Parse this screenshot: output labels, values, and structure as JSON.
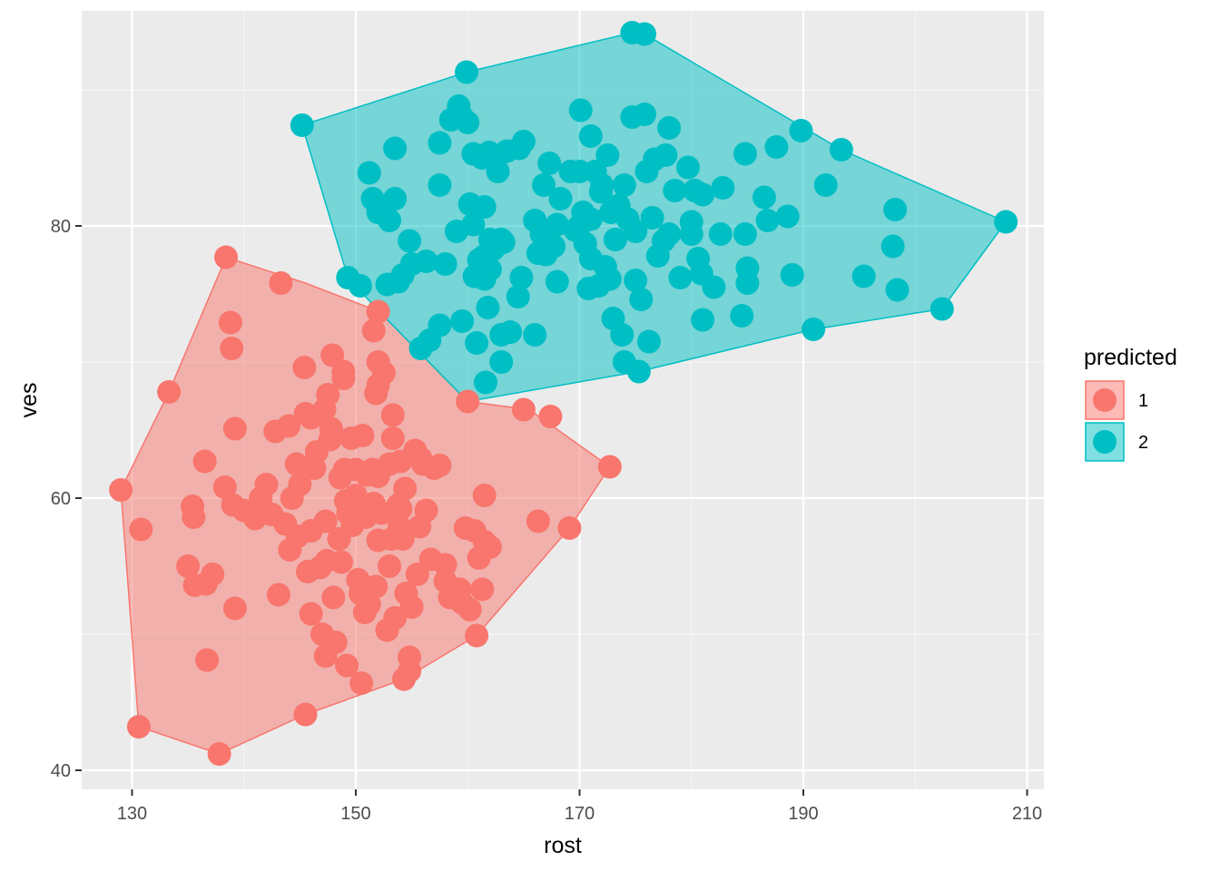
{
  "chart_data": {
    "type": "scatter",
    "title": "",
    "xlabel": "rost",
    "ylabel": "ves",
    "xlim": [
      125.5,
      211.5
    ],
    "ylim": [
      38.6,
      95.8
    ],
    "x_ticks": [
      130,
      150,
      170,
      190,
      210
    ],
    "y_ticks": [
      40,
      60,
      80
    ],
    "x_tick_labels": [
      "130",
      "150",
      "170",
      "190",
      "210"
    ],
    "y_tick_labels": [
      "40",
      "60",
      "80"
    ],
    "grid": true,
    "legend": {
      "title": "predicted",
      "position": "right"
    },
    "series": [
      {
        "name": "1",
        "color": "#F8766D",
        "hull": [
          [
            129,
            60.6
          ],
          [
            130.6,
            43.2
          ],
          [
            137.8,
            41.2
          ],
          [
            145.5,
            44.1
          ],
          [
            154.3,
            46.7
          ],
          [
            160.8,
            49.9
          ],
          [
            169.1,
            57.8
          ],
          [
            172.7,
            62.3
          ],
          [
            165.5,
            66.5
          ],
          [
            160,
            67.1
          ],
          [
            152.1,
            73.7
          ],
          [
            145.5,
            75.8
          ],
          [
            138.4,
            77.7
          ],
          [
            133.3,
            67.8
          ]
        ],
        "points": [
          [
            129,
            60.6
          ],
          [
            130.6,
            43.2
          ],
          [
            130.8,
            57.7
          ],
          [
            133.3,
            67.8
          ],
          [
            135,
            55
          ],
          [
            135.4,
            59.4
          ],
          [
            135.5,
            58.6
          ],
          [
            135.6,
            53.6
          ],
          [
            136.5,
            62.7
          ],
          [
            136.6,
            53.7
          ],
          [
            136.7,
            48.1
          ],
          [
            137.2,
            54.4
          ],
          [
            137.8,
            41.2
          ],
          [
            138.3,
            60.8
          ],
          [
            138.4,
            77.7
          ],
          [
            138.8,
            72.9
          ],
          [
            138.9,
            71
          ],
          [
            139,
            59.5
          ],
          [
            139.2,
            65.1
          ],
          [
            139.2,
            51.9
          ],
          [
            140,
            59.1
          ],
          [
            141,
            58.5
          ],
          [
            141.5,
            60
          ],
          [
            142,
            61
          ],
          [
            142.5,
            58.8
          ],
          [
            142.8,
            64.9
          ],
          [
            143.1,
            52.9
          ],
          [
            143.3,
            75.8
          ],
          [
            143.7,
            58.1
          ],
          [
            144,
            65.3
          ],
          [
            144.1,
            56.2
          ],
          [
            144.3,
            60
          ],
          [
            144.7,
            62.5
          ],
          [
            144.8,
            57.2
          ],
          [
            145,
            61
          ],
          [
            145.4,
            69.6
          ],
          [
            145.5,
            66.2
          ],
          [
            145.5,
            44.1
          ],
          [
            145.7,
            54.6
          ],
          [
            146,
            51.5
          ],
          [
            146,
            65.9
          ],
          [
            146,
            57.6
          ],
          [
            146.3,
            62.2
          ],
          [
            146.5,
            63.4
          ],
          [
            146.8,
            54.9
          ],
          [
            147,
            50
          ],
          [
            147.2,
            66.5
          ],
          [
            147.3,
            58.3
          ],
          [
            147.3,
            48.4
          ],
          [
            147.4,
            55.4
          ],
          [
            147.5,
            67.6
          ],
          [
            147.7,
            64.3
          ],
          [
            147.8,
            65.1
          ],
          [
            147.9,
            70.5
          ],
          [
            148,
            52.7
          ],
          [
            148.2,
            49.4
          ],
          [
            148.5,
            57
          ],
          [
            148.6,
            61.5
          ],
          [
            148.7,
            55.3
          ],
          [
            148.9,
            69.3
          ],
          [
            148.9,
            68.8
          ],
          [
            149,
            62.1
          ],
          [
            149.1,
            59.8
          ],
          [
            149.2,
            47.7
          ],
          [
            149.3,
            58.9
          ],
          [
            149.6,
            64.4
          ],
          [
            149.7,
            58
          ],
          [
            150,
            60.2
          ],
          [
            150,
            62.1
          ],
          [
            150.2,
            54
          ],
          [
            150.4,
            53
          ],
          [
            150.5,
            46.4
          ],
          [
            150.6,
            64.6
          ],
          [
            150.8,
            51.6
          ],
          [
            150.9,
            58.6
          ],
          [
            151,
            58.9
          ],
          [
            151.2,
            52.2
          ],
          [
            151,
            61.7
          ],
          [
            151.5,
            62.1
          ],
          [
            151.6,
            72.3
          ],
          [
            151.6,
            59.6
          ],
          [
            151.8,
            67.7
          ],
          [
            151.8,
            53.5
          ],
          [
            152,
            70
          ],
          [
            152,
            56.9
          ],
          [
            152,
            61.6
          ],
          [
            152,
            68.3
          ],
          [
            152,
            73.7
          ],
          [
            152.3,
            58.9
          ],
          [
            152.5,
            69.2
          ],
          [
            152.8,
            50.3
          ],
          [
            153,
            55
          ],
          [
            153,
            62.5
          ],
          [
            153.2,
            57
          ],
          [
            153.3,
            64.4
          ],
          [
            153.3,
            66.1
          ],
          [
            153.5,
            51.2
          ],
          [
            153.8,
            59.5
          ],
          [
            153.9,
            57.9
          ],
          [
            154,
            59.2
          ],
          [
            154,
            62.7
          ],
          [
            154.4,
            60.7
          ],
          [
            154.3,
            46.7
          ],
          [
            154.2,
            57
          ],
          [
            154.5,
            53
          ],
          [
            154.8,
            47.3
          ],
          [
            154.8,
            48.3
          ],
          [
            155,
            52
          ],
          [
            155.3,
            63.5
          ],
          [
            155.5,
            54.4
          ],
          [
            155.7,
            57.9
          ],
          [
            155.8,
            62.9
          ],
          [
            156,
            62.5
          ],
          [
            156.3,
            59.1
          ],
          [
            156.7,
            55.5
          ],
          [
            157,
            62.2
          ],
          [
            157.5,
            62.4
          ],
          [
            158,
            55.1
          ],
          [
            158,
            53.9
          ],
          [
            158.4,
            52.7
          ],
          [
            159.3,
            53.3
          ],
          [
            159.5,
            52.3
          ],
          [
            159.8,
            57.8
          ],
          [
            160.2,
            51.8
          ],
          [
            160.6,
            57.6
          ],
          [
            160.8,
            49.9
          ],
          [
            161,
            55.6
          ],
          [
            161.3,
            53.3
          ],
          [
            161.5,
            60.2
          ],
          [
            161.5,
            56.8
          ],
          [
            162,
            56.4
          ],
          [
            165,
            66.5
          ],
          [
            166.3,
            58.3
          ],
          [
            167.4,
            66
          ],
          [
            169.1,
            57.8
          ],
          [
            172.7,
            62.3
          ],
          [
            160,
            67.1
          ]
        ]
      },
      {
        "name": "2",
        "color": "#00BFC4",
        "hull": [
          [
            145.2,
            87.4
          ],
          [
            149.3,
            76.2
          ],
          [
            152.1,
            73.7
          ],
          [
            160,
            67.1
          ],
          [
            175.3,
            69.3
          ],
          [
            190.9,
            72.4
          ],
          [
            202.4,
            73.9
          ],
          [
            208.1,
            80.3
          ],
          [
            193.4,
            85.6
          ],
          [
            175.8,
            94.1
          ],
          [
            174.7,
            94.2
          ],
          [
            159.9,
            91.3
          ]
        ],
        "points": [
          [
            145.2,
            87.4
          ],
          [
            149.3,
            76.2
          ],
          [
            150.4,
            75.6
          ],
          [
            151.2,
            83.9
          ],
          [
            151.5,
            82
          ],
          [
            152,
            81
          ],
          [
            152.5,
            80.9
          ],
          [
            152.8,
            75.7
          ],
          [
            153,
            80.4
          ],
          [
            153.5,
            82
          ],
          [
            153.8,
            75.9
          ],
          [
            153.5,
            85.7
          ],
          [
            154.2,
            76.4
          ],
          [
            154.8,
            78.9
          ],
          [
            155,
            77.2
          ],
          [
            155.8,
            71
          ],
          [
            156.3,
            77.4
          ],
          [
            156.6,
            71.6
          ],
          [
            157.5,
            86.1
          ],
          [
            157.5,
            72.7
          ],
          [
            157.5,
            83
          ],
          [
            158,
            77.2
          ],
          [
            158.5,
            87.8
          ],
          [
            159,
            79.6
          ],
          [
            159.2,
            88.8
          ],
          [
            159.5,
            73
          ],
          [
            159.5,
            88
          ],
          [
            159.9,
            91.3
          ],
          [
            160,
            87.6
          ],
          [
            160.2,
            81.6
          ],
          [
            160.5,
            80.1
          ],
          [
            160.5,
            85.3
          ],
          [
            160.6,
            76.3
          ],
          [
            160.8,
            71.4
          ],
          [
            161,
            77.5
          ],
          [
            161.3,
            85
          ],
          [
            161.5,
            81.4
          ],
          [
            161.5,
            77.8
          ],
          [
            161.5,
            76.1
          ],
          [
            161.6,
            68.5
          ],
          [
            161.8,
            74
          ],
          [
            161.9,
            85.4
          ],
          [
            162,
            79
          ],
          [
            162,
            76.8
          ],
          [
            162.3,
            78.3
          ],
          [
            162.5,
            84.8
          ],
          [
            162.7,
            84
          ],
          [
            163,
            72
          ],
          [
            163,
            79
          ],
          [
            163,
            70
          ],
          [
            163.2,
            78.8
          ],
          [
            163.5,
            85.5
          ],
          [
            163.8,
            72.2
          ],
          [
            164.5,
            74.8
          ],
          [
            164.6,
            85.7
          ],
          [
            164.8,
            76.2
          ],
          [
            165,
            86.2
          ],
          [
            166,
            80.4
          ],
          [
            166,
            72
          ],
          [
            166.3,
            78
          ],
          [
            166.6,
            79.4
          ],
          [
            166.8,
            83
          ],
          [
            167,
            77.9
          ],
          [
            167.3,
            84.6
          ],
          [
            167.7,
            78.5
          ],
          [
            168,
            75.9
          ],
          [
            168,
            80.1
          ],
          [
            168.3,
            82
          ],
          [
            169.2,
            84
          ],
          [
            169.6,
            79.7
          ],
          [
            170,
            80
          ],
          [
            170,
            84
          ],
          [
            170.1,
            88.5
          ],
          [
            170.3,
            81
          ],
          [
            170.5,
            78.7
          ],
          [
            170.8,
            75.4
          ],
          [
            171,
            86.6
          ],
          [
            171,
            80.5
          ],
          [
            171,
            77.6
          ],
          [
            171.4,
            84
          ],
          [
            171.7,
            75.6
          ],
          [
            171.9,
            82.5
          ],
          [
            172,
            83
          ],
          [
            172.3,
            77
          ],
          [
            172.5,
            85.2
          ],
          [
            172.7,
            76.1
          ],
          [
            172.8,
            81
          ],
          [
            173,
            73.2
          ],
          [
            173.2,
            79
          ],
          [
            173.5,
            81.5
          ],
          [
            173.8,
            72
          ],
          [
            174,
            70
          ],
          [
            174,
            83
          ],
          [
            174.3,
            80.5
          ],
          [
            174.7,
            94.2
          ],
          [
            174.7,
            88
          ],
          [
            175,
            76
          ],
          [
            175,
            79.6
          ],
          [
            175.3,
            69.3
          ],
          [
            175.5,
            74.6
          ],
          [
            175.8,
            94.1
          ],
          [
            175.8,
            88.2
          ],
          [
            176,
            84
          ],
          [
            176.2,
            71.5
          ],
          [
            176.5,
            80.6
          ],
          [
            176.7,
            84.9
          ],
          [
            177,
            77.8
          ],
          [
            177.5,
            78.9
          ],
          [
            177.7,
            85.2
          ],
          [
            178,
            87.2
          ],
          [
            178,
            79.4
          ],
          [
            178.5,
            82.6
          ],
          [
            179,
            76.2
          ],
          [
            179.7,
            84.3
          ],
          [
            180,
            80.3
          ],
          [
            180,
            79.4
          ],
          [
            180.3,
            82.6
          ],
          [
            180.6,
            77.6
          ],
          [
            180.9,
            76.5
          ],
          [
            181,
            73.1
          ],
          [
            181,
            82.3
          ],
          [
            182,
            75.5
          ],
          [
            182.6,
            79.4
          ],
          [
            182.8,
            82.8
          ],
          [
            184.5,
            73.4
          ],
          [
            184.8,
            79.4
          ],
          [
            184.8,
            85.3
          ],
          [
            185,
            76.9
          ],
          [
            185,
            75.8
          ],
          [
            186.5,
            82.1
          ],
          [
            186.8,
            80.4
          ],
          [
            187.6,
            85.8
          ],
          [
            188.6,
            80.7
          ],
          [
            189,
            76.4
          ],
          [
            189.8,
            87
          ],
          [
            190.9,
            72.4
          ],
          [
            192,
            83
          ],
          [
            193.4,
            85.6
          ],
          [
            195.4,
            76.3
          ],
          [
            198,
            78.5
          ],
          [
            198.2,
            81.2
          ],
          [
            198.4,
            75.3
          ],
          [
            202.4,
            73.9
          ],
          [
            208.1,
            80.3
          ]
        ]
      }
    ]
  }
}
